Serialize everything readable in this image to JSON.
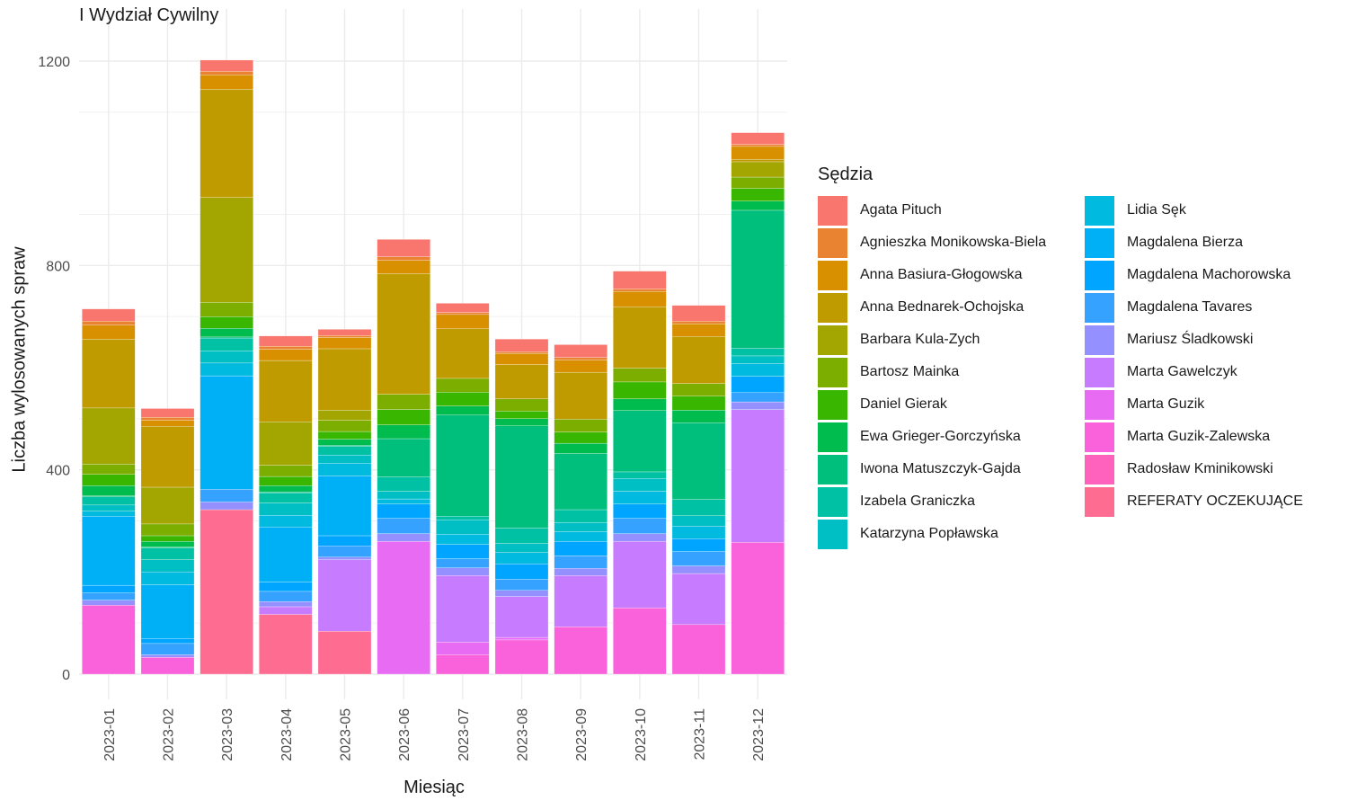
{
  "chart_data": {
    "type": "bar",
    "stacked": true,
    "title": "I Wydział Cywilny",
    "xlabel": "Miesiąc",
    "ylabel": "Liczba wylosowanych spraw",
    "ylim": [
      0,
      1260
    ],
    "yticks": [
      0,
      400,
      800,
      1200
    ],
    "grid": true,
    "legend_title": "Sędzia",
    "legend_position": "right",
    "categories": [
      "2023-01",
      "2023-02",
      "2023-03",
      "2023-04",
      "2023-05",
      "2023-06",
      "2023-07",
      "2023-08",
      "2023-09",
      "2023-10",
      "2023-11",
      "2023-12"
    ],
    "series": [
      {
        "name": "Agata Pituch",
        "color": "#F8766D",
        "values": [
          24,
          17,
          22,
          20,
          12,
          34,
          18,
          25,
          25,
          35,
          31,
          23
        ]
      },
      {
        "name": "Agnieszka Monikowska-Biela",
        "color": "#EA8331",
        "values": [
          8,
          6,
          7,
          6,
          4,
          7,
          4,
          3,
          5,
          5,
          5,
          4
        ]
      },
      {
        "name": "Anna Basiura-Głogowska",
        "color": "#D89000",
        "values": [
          27,
          12,
          28,
          22,
          22,
          26,
          28,
          22,
          24,
          30,
          25,
          25
        ]
      },
      {
        "name": "Anna Bednarek-Ochojska",
        "color": "#C09B00",
        "values": [
          135,
          119,
          212,
          120,
          120,
          236,
          97,
          67,
          92,
          120,
          92,
          5
        ]
      },
      {
        "name": "Barbara Kula-Zych",
        "color": "#A3A500",
        "values": [
          110,
          72,
          205,
          85,
          20,
          0,
          0,
          0,
          0,
          0,
          0,
          30
        ]
      },
      {
        "name": "Bartosz Mainka",
        "color": "#7CAE00",
        "values": [
          20,
          23,
          28,
          22,
          22,
          30,
          27,
          24,
          25,
          27,
          25,
          22
        ]
      },
      {
        "name": "Daniel Gierak",
        "color": "#39B600",
        "values": [
          22,
          11,
          23,
          18,
          15,
          30,
          27,
          15,
          22,
          33,
          27,
          25
        ]
      },
      {
        "name": "Ewa Grieger-Gorczyńska",
        "color": "#00BB4E",
        "values": [
          20,
          11,
          17,
          12,
          12,
          27,
          18,
          14,
          20,
          23,
          25,
          18
        ]
      },
      {
        "name": "Iwona Matuszczyk-Gajda",
        "color": "#00BF7D",
        "values": [
          2,
          2,
          2,
          2,
          2,
          75,
          198,
          200,
          110,
          120,
          150,
          270
        ]
      },
      {
        "name": "Izabela Graniczka",
        "color": "#00C1A3",
        "values": [
          16,
          23,
          25,
          20,
          17,
          28,
          7,
          30,
          25,
          13,
          32,
          15
        ]
      },
      {
        "name": "Katarzyna Popławska",
        "color": "#00BFC4",
        "values": [
          12,
          24,
          24,
          24,
          16,
          15,
          28,
          18,
          18,
          25,
          20,
          15
        ]
      },
      {
        "name": "Lidia Sęk",
        "color": "#00BAE0",
        "values": [
          10,
          25,
          25,
          23,
          25,
          10,
          20,
          22,
          19,
          25,
          25,
          25
        ]
      },
      {
        "name": "Magdalena Bierza",
        "color": "#00B0F6",
        "values": [
          135,
          105,
          222,
          108,
          117,
          0,
          0,
          0,
          0,
          0,
          0,
          0
        ]
      },
      {
        "name": "Magdalena Machorowska",
        "color": "#00A5FF",
        "values": [
          15,
          10,
          0,
          18,
          20,
          28,
          28,
          30,
          28,
          28,
          25,
          32
        ]
      },
      {
        "name": "Magdalena Tavares",
        "color": "#35A2FF",
        "values": [
          14,
          22,
          25,
          20,
          22,
          30,
          18,
          22,
          25,
          30,
          28,
          18
        ]
      },
      {
        "name": "Mariusz Śladkowski",
        "color": "#9590FF",
        "values": [
          10,
          5,
          15,
          10,
          5,
          15,
          15,
          12,
          14,
          15,
          15,
          15
        ]
      },
      {
        "name": "Marta Gawelczyk",
        "color": "#C77CFF",
        "values": [
          0,
          0,
          0,
          15,
          140,
          0,
          130,
          80,
          100,
          130,
          100,
          260
        ]
      },
      {
        "name": "Marta Guzik",
        "color": "#E76BF3",
        "values": [
          0,
          0,
          0,
          0,
          0,
          260,
          25,
          5,
          0,
          0,
          0,
          0
        ]
      },
      {
        "name": "Marta Guzik-Zalewska",
        "color": "#FA62DB",
        "values": [
          135,
          33,
          0,
          0,
          0,
          0,
          38,
          67,
          93,
          130,
          97,
          258
        ]
      },
      {
        "name": "Radosław Kminikowski",
        "color": "#FF62BC",
        "values": [
          0,
          0,
          0,
          0,
          0,
          0,
          0,
          0,
          0,
          0,
          0,
          0
        ]
      },
      {
        "name": "REFERATY OCZEKUJĄCE",
        "color": "#FF6C91",
        "values": [
          0,
          0,
          322,
          117,
          84,
          0,
          0,
          0,
          0,
          0,
          0,
          0
        ]
      }
    ]
  }
}
